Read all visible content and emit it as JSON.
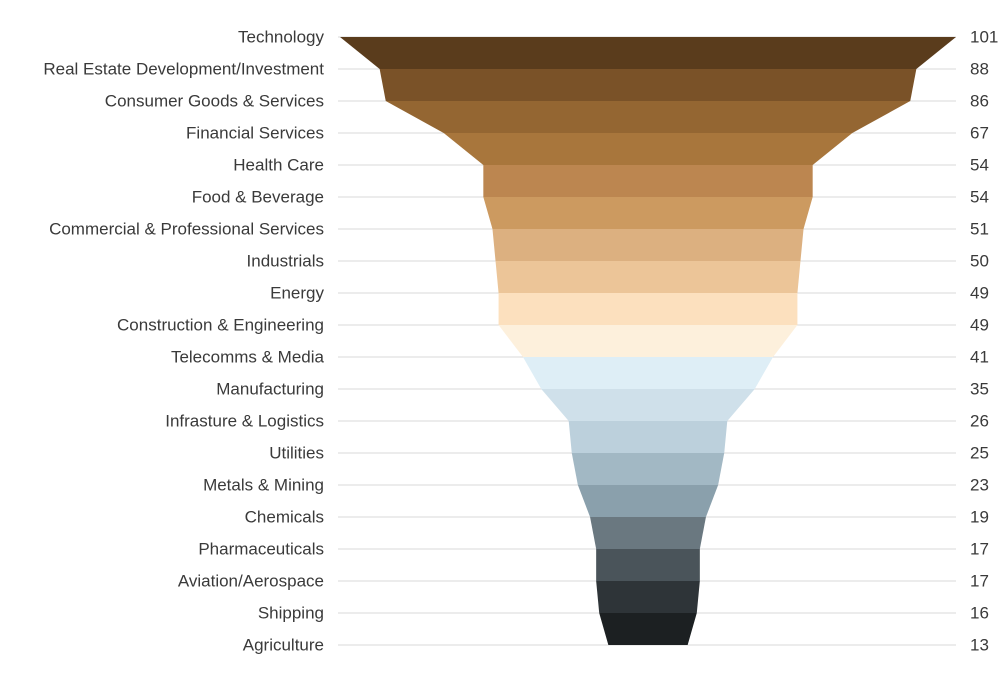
{
  "chart_data": {
    "type": "funnel",
    "categories": [
      "Technology",
      "Real Estate Development/Investment",
      "Consumer Goods & Services",
      "Financial Services",
      "Health Care",
      "Food & Beverage",
      "Commercial & Professional Services",
      "Industrials",
      "Energy",
      "Construction & Engineering",
      "Telecomms & Media",
      "Manufacturing",
      "Infrasture & Logistics",
      "Utilities",
      "Metals & Mining",
      "Chemicals",
      "Pharmaceuticals",
      "Aviation/Aerospace",
      "Shipping",
      "Agriculture"
    ],
    "values": [
      101,
      88,
      86,
      67,
      54,
      54,
      51,
      50,
      49,
      49,
      41,
      35,
      26,
      25,
      23,
      19,
      17,
      17,
      16,
      13
    ]
  }
}
